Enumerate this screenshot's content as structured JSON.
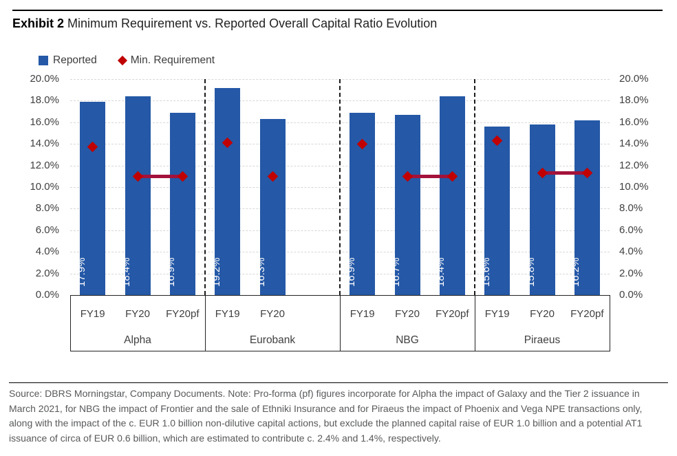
{
  "header": {
    "exhibit": "Exhibit 2",
    "title": "Minimum Requirement vs. Reported Overall Capital Ratio Evolution"
  },
  "chart_data": {
    "type": "bar",
    "title": "Minimum Requirement vs. Reported Overall Capital Ratio Evolution",
    "ylim": [
      0,
      20
    ],
    "yticks": [
      0,
      2,
      4,
      6,
      8,
      10,
      12,
      14,
      16,
      18,
      20
    ],
    "ytick_labels": [
      "0.0%",
      "2.0%",
      "4.0%",
      "6.0%",
      "8.0%",
      "10.0%",
      "12.0%",
      "14.0%",
      "16.0%",
      "18.0%",
      "20.0%"
    ],
    "axis_sides": [
      "left",
      "right"
    ],
    "gridlines": true,
    "legend_position": "top-left",
    "series": [
      {
        "name": "Reported",
        "type": "bar",
        "color": "#2558A6"
      },
      {
        "name": "Min. Requirement",
        "type": "diamond",
        "color": "#C00000",
        "line_color": "#A3123B"
      }
    ],
    "groups": [
      {
        "name": "Alpha",
        "slots": 3,
        "bars": [
          {
            "period": "FY19",
            "reported": 17.9,
            "reported_label": "17.9%",
            "min_requirement": 13.7
          },
          {
            "period": "FY20",
            "reported": 18.4,
            "reported_label": "18.4%",
            "min_requirement": 11.0,
            "connect_to_next": true
          },
          {
            "period": "FY20pf",
            "reported": 16.9,
            "reported_label": "16.9%",
            "min_requirement": 11.0
          }
        ]
      },
      {
        "name": "Eurobank",
        "slots": 3,
        "bars": [
          {
            "period": "FY19",
            "reported": 19.2,
            "reported_label": "19.2%",
            "min_requirement": 14.1
          },
          {
            "period": "FY20",
            "reported": 16.3,
            "reported_label": "16.3%",
            "min_requirement": 11.0
          }
        ]
      },
      {
        "name": "NBG",
        "slots": 3,
        "bars": [
          {
            "period": "FY19",
            "reported": 16.9,
            "reported_label": "16.9%",
            "min_requirement": 14.0
          },
          {
            "period": "FY20",
            "reported": 16.7,
            "reported_label": "16.7%",
            "min_requirement": 11.0,
            "connect_to_next": true
          },
          {
            "period": "FY20pf",
            "reported": 18.4,
            "reported_label": "18.4%",
            "min_requirement": 11.0
          }
        ]
      },
      {
        "name": "Piraeus",
        "slots": 3,
        "bars": [
          {
            "period": "FY19",
            "reported": 15.6,
            "reported_label": "15.6%",
            "min_requirement": 14.3
          },
          {
            "period": "FY20",
            "reported": 15.8,
            "reported_label": "15.8%",
            "min_requirement": 11.3,
            "connect_to_next": true
          },
          {
            "period": "FY20pf",
            "reported": 16.2,
            "reported_label": "16.2%",
            "min_requirement": 11.3
          }
        ]
      }
    ]
  },
  "footer": {
    "text": "Source: DBRS Morningstar, Company Documents. Note: Pro-forma (pf) figures incorporate for Alpha the impact of Galaxy and the Tier 2 issuance in March 2021, for NBG the impact of Frontier and the sale of Ethniki Insurance and for Piraeus the impact of Phoenix and Vega NPE transactions only, along with the impact of the c. EUR 1.0 billion non-dilutive capital actions, but exclude the planned capital raise of EUR 1.0 billion and a potential AT1 issuance of circa of EUR 0.6 billion, which are estimated to contribute c. 2.4% and 1.4%, respectively."
  }
}
